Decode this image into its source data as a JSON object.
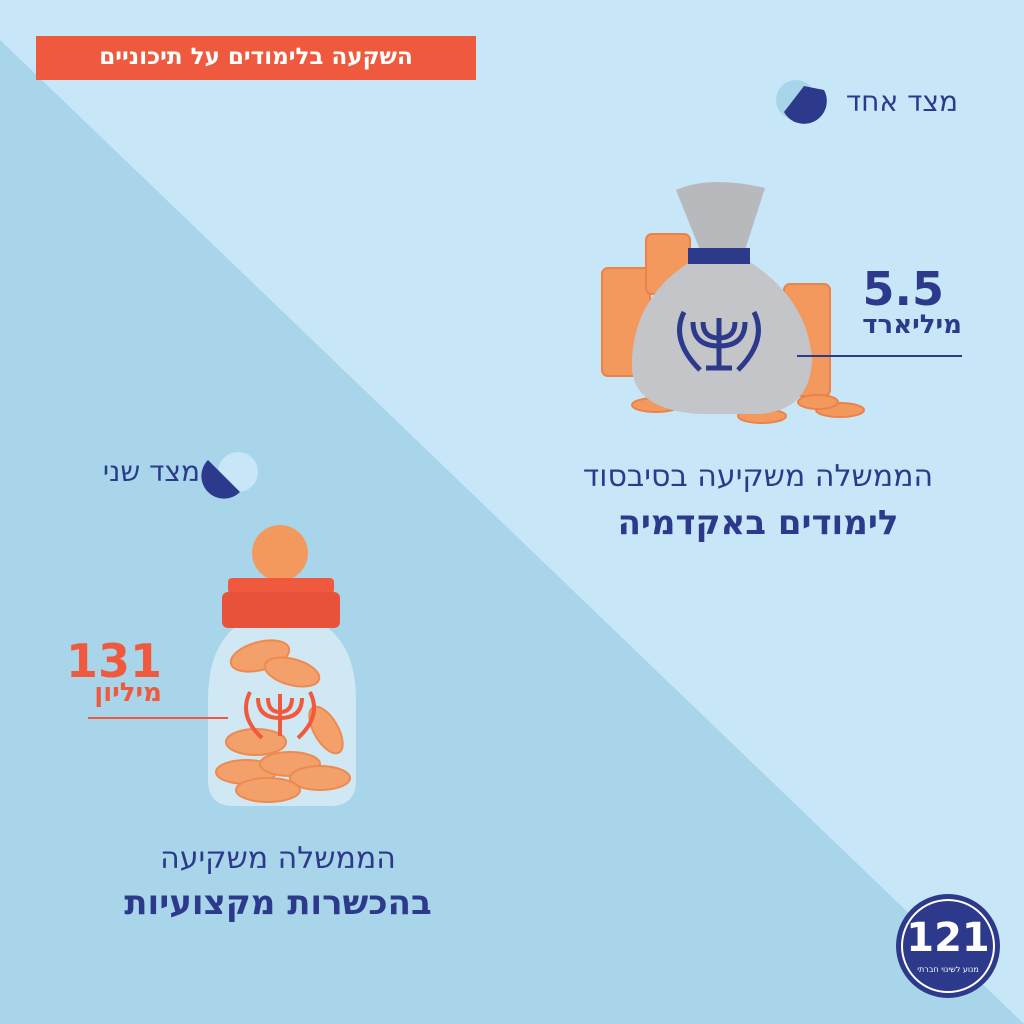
{
  "header": {
    "title": "השקעה בלימודים על תיכוניים"
  },
  "side_one": {
    "label": "מצד אחד",
    "amount": 5.5,
    "unit": "מיליארד",
    "caption_line1": "הממשלה משקיעה בסיבסוד",
    "caption_line2": "לימודים באקדמיה"
  },
  "side_two": {
    "label": "מצד שני",
    "amount": 131,
    "unit": "מיליון",
    "caption_line1": "הממשלה משקיעה",
    "caption_line2": "בהכשרות מקצועיות"
  },
  "logo": {
    "text": "121",
    "tagline": "מנוע לשינוי חברתי"
  }
}
